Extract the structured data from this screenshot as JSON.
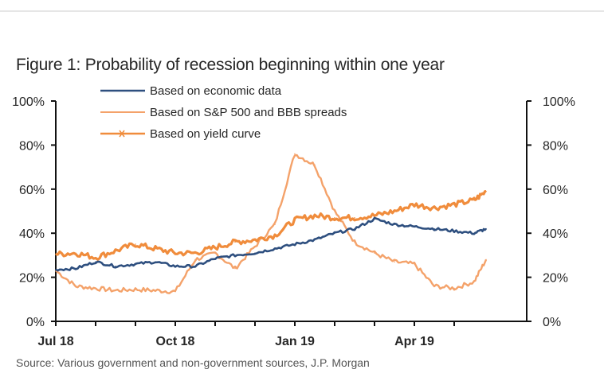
{
  "chart_data": {
    "type": "line",
    "title": "Figure 1: Probability of recession beginning within one year",
    "source": "Source: Various government and non-government sources, J.P. Morgan",
    "xlabel": "",
    "ylabel": "",
    "x_tick_labels": [
      "Jul 18",
      "Oct 18",
      "Jan 19",
      "Apr 19"
    ],
    "x_unit": "months since Jul 2018",
    "x_tick_positions": [
      0,
      3,
      6,
      9
    ],
    "x_minor_ticks": [
      0,
      1,
      2,
      3,
      4,
      5,
      6,
      7,
      8,
      9,
      10
    ],
    "xlim": [
      0,
      11.8
    ],
    "y_tick_labels_left": [
      "0%",
      "20%",
      "40%",
      "60%",
      "80%",
      "100%"
    ],
    "y_tick_labels_right": [
      "0%",
      "20%",
      "40%",
      "60%",
      "80%",
      "100%"
    ],
    "ylim": [
      0,
      100
    ],
    "grid": false,
    "legend_position": "top-left",
    "x": [
      0,
      0.5,
      1,
      1.5,
      2,
      2.5,
      3,
      3.5,
      4,
      4.5,
      5,
      5.5,
      6,
      6.5,
      7,
      7.5,
      8,
      8.5,
      9,
      9.5,
      10,
      10.5,
      10.8
    ],
    "series": [
      {
        "name": "Based on economic data",
        "color": "#2E4F7F",
        "marker": "none",
        "values": [
          23.5,
          24,
          27,
          25,
          26,
          27,
          25,
          25,
          28.5,
          30,
          31,
          33,
          35,
          37,
          40,
          42,
          46.5,
          44,
          43,
          42,
          41,
          40,
          42
        ]
      },
      {
        "name": "Based on S&P 500 and BBB spreads",
        "color": "#F4A26A",
        "marker": "none",
        "values": [
          23,
          16,
          15,
          14,
          14.5,
          14,
          13.5,
          28,
          31,
          24,
          34,
          44,
          76,
          71,
          50,
          36,
          31,
          27,
          26,
          16,
          15,
          18,
          28
        ]
      },
      {
        "name": "Based on yield curve",
        "color": "#F08C3C",
        "marker": "x",
        "values": [
          30.5,
          31,
          29,
          32,
          35,
          33,
          31,
          31,
          33.5,
          36,
          37,
          39,
          46,
          48,
          47,
          47,
          48,
          50,
          53,
          51.5,
          53,
          55,
          59
        ]
      }
    ]
  }
}
